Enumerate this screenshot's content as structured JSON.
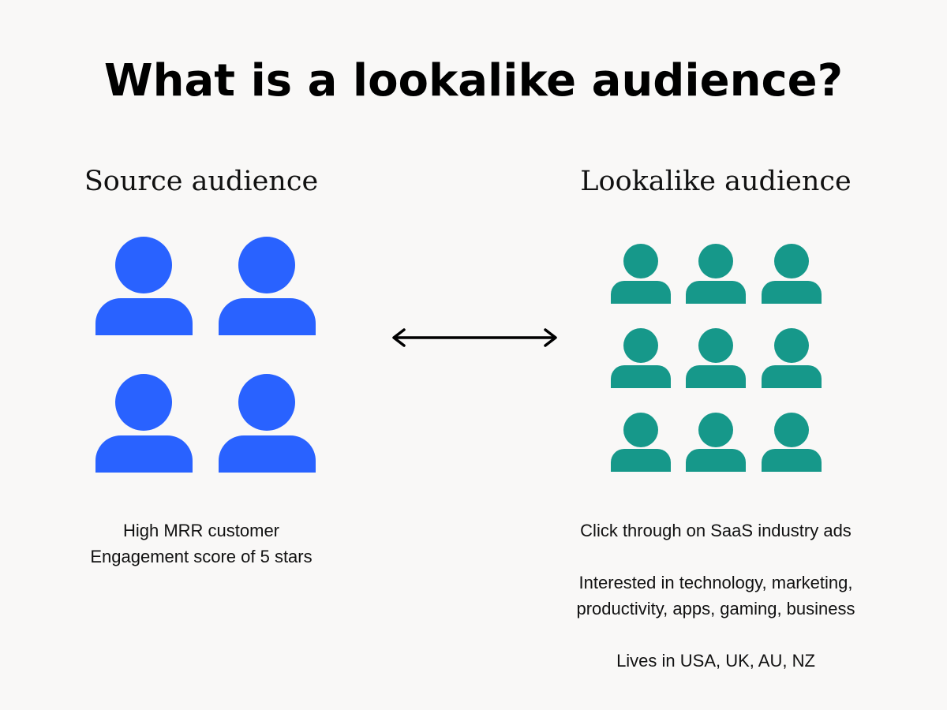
{
  "title": "What is a lookalike audience?",
  "source": {
    "heading": "Source audience",
    "icon": "person-icon",
    "color": "#2962FF",
    "count": 4,
    "lines": [
      "High MRR customer",
      "Engagement score of 5 stars"
    ]
  },
  "lookalike": {
    "heading": "Lookalike audience",
    "icon": "person-icon",
    "color": "#16988A",
    "count": 9,
    "lines": [
      "Click through on SaaS industry ads",
      "",
      "Interested in technology, marketing,",
      "productivity, apps, gaming, business",
      "",
      "Lives in USA, UK, AU, NZ"
    ]
  },
  "connector": {
    "icon": "double-arrow-icon",
    "color": "#000000"
  }
}
